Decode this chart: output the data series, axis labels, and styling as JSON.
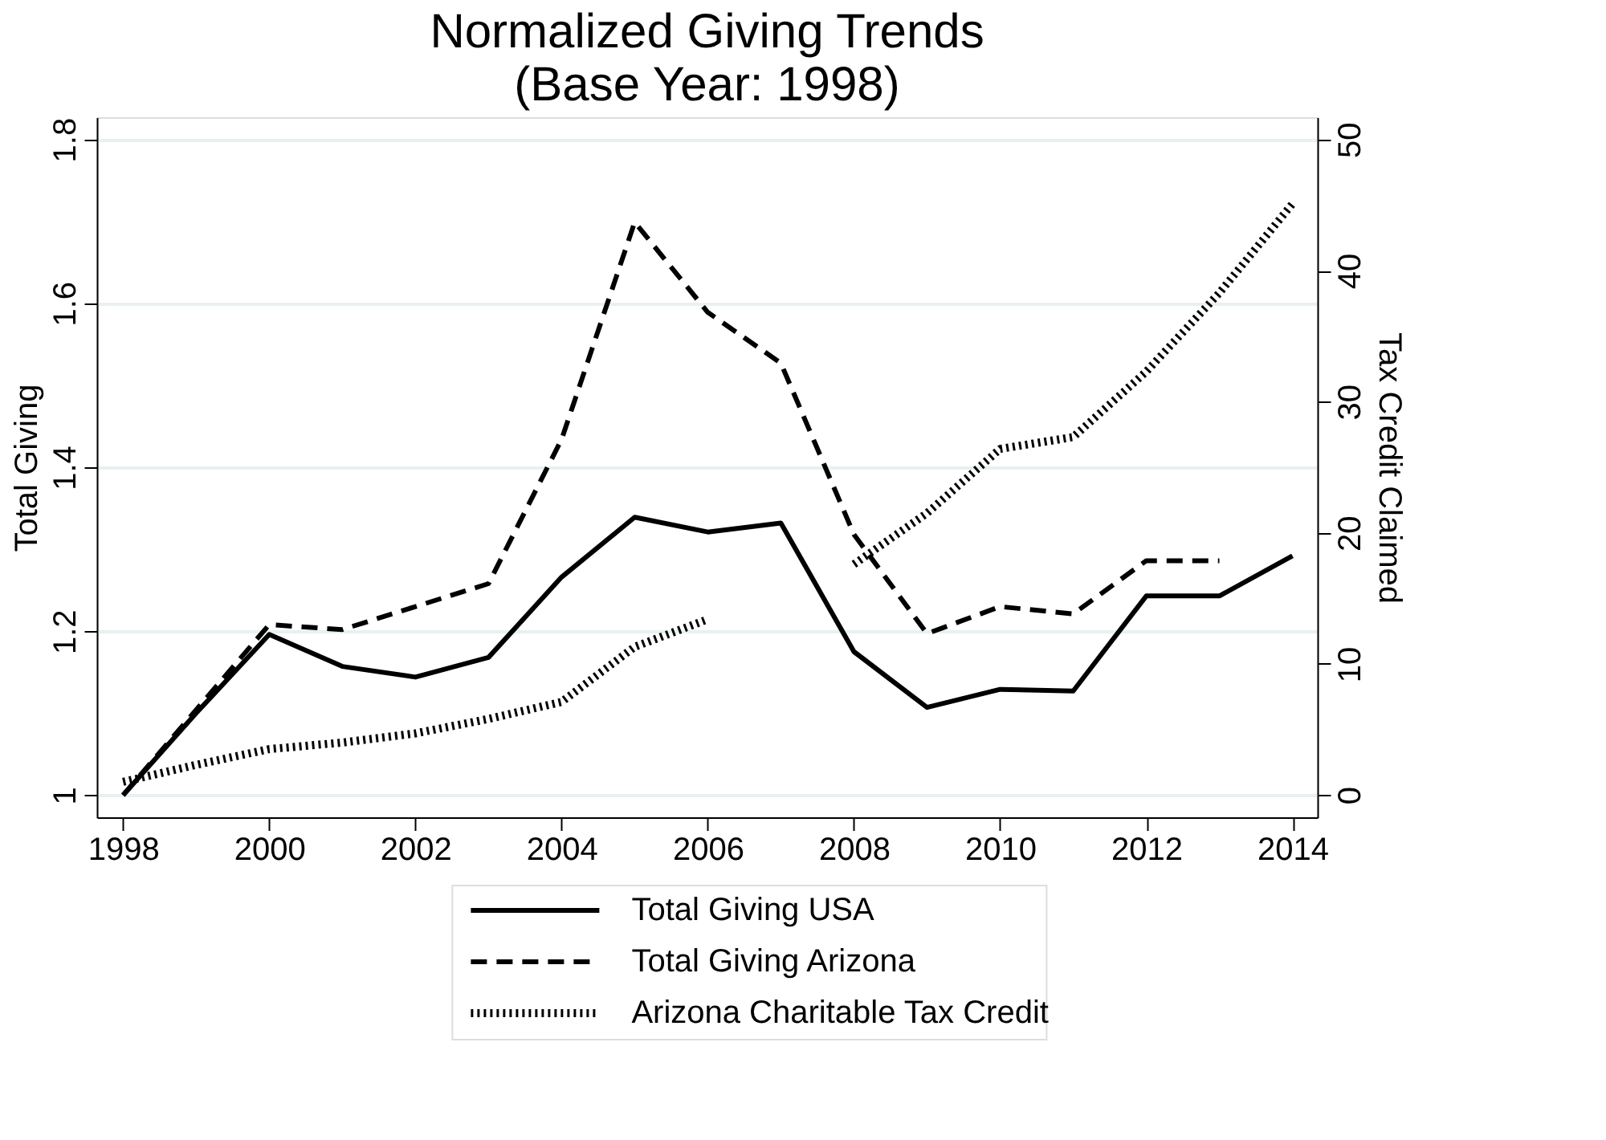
{
  "chart_data": {
    "type": "line",
    "title": "Normalized Giving Trends",
    "subtitle": "(Base Year: 1998)",
    "ylabel": "Total Giving",
    "y2label": "Tax Credit Claimed",
    "x": [
      1998,
      1999,
      2000,
      2001,
      2002,
      2003,
      2004,
      2005,
      2006,
      2007,
      2008,
      2009,
      2010,
      2011,
      2012,
      2013,
      2014
    ],
    "series": [
      {
        "name": "Total Giving USA",
        "color": "#000000",
        "line_style": "solid",
        "values": [
          1.0,
          1.1,
          1.196,
          1.157,
          1.144,
          1.168,
          1.266,
          1.339,
          1.321,
          1.332,
          1.175,
          1.107,
          1.129,
          1.127,
          1.243,
          1.243,
          1.292
        ]
      },
      {
        "name": "Total Giving Arizona",
        "color": "#000000",
        "line_style": "dashed",
        "values": [
          1.0,
          1.104,
          1.208,
          1.202,
          1.23,
          1.258,
          1.434,
          1.699,
          1.589,
          1.527,
          1.318,
          1.197,
          1.23,
          1.221,
          1.286,
          1.286,
          null
        ]
      },
      {
        "name": "Arizona Charitable Tax Credit",
        "color": "#000000",
        "line_style": "dotted",
        "axis": "y2",
        "values": [
          1.0,
          2.3,
          3.5,
          4.0,
          4.7,
          5.8,
          7.1,
          11.3,
          13.4,
          null,
          17.6,
          21.5,
          26.4,
          27.3,
          32.3,
          38.3,
          45.1
        ]
      }
    ],
    "xlim": [
      1997.64,
      2014.34
    ],
    "xticks": [
      1998,
      2000,
      2002,
      2004,
      2006,
      2008,
      2010,
      2012,
      2014
    ],
    "ylim": [
      0.973,
      1.827
    ],
    "yticks": [
      1,
      1.2,
      1.4,
      1.6,
      1.8
    ],
    "y2lim": [
      -1.7,
      51.7
    ],
    "y2ticks": [
      0,
      10,
      20,
      30,
      40,
      50
    ],
    "grid": "y",
    "legend": "bottom"
  }
}
